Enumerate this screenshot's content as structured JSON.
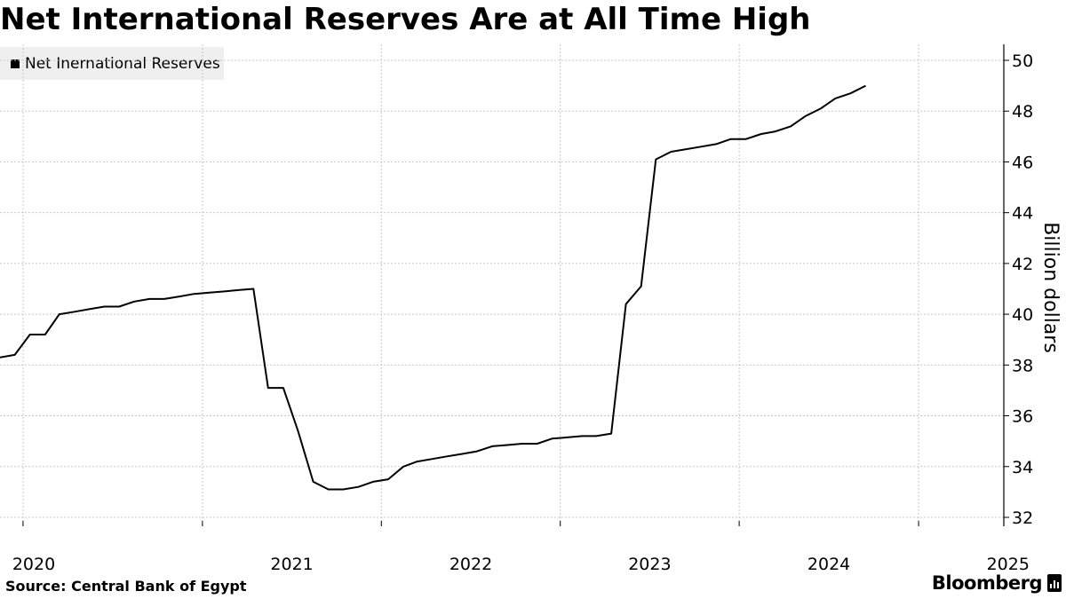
{
  "title": "Net International Reserves Are at All Time High",
  "source": "Source: Central Bank of Egypt",
  "brand": "Bloomberg",
  "brand_icon": "bloomberg-terminal-icon",
  "colors": {
    "line": "#000000",
    "grid": "#c8c8c8",
    "legend_bg": "#efefef",
    "axis": "#000000"
  },
  "chart_data": {
    "type": "line",
    "title": "Net International Reserves Are at All Time High",
    "ylabel": "Billion dollars",
    "xlabel": "",
    "ylim": [
      32,
      50
    ],
    "yticks": [
      32,
      34,
      36,
      38,
      40,
      42,
      44,
      46,
      48,
      50
    ],
    "xlim": [
      "2019-11-15",
      "2025-05-15"
    ],
    "xticks": [
      "2020",
      "2021",
      "2022",
      "2023",
      "2024",
      "2025"
    ],
    "xtick_dates": [
      "2020-01-01",
      "2021-01-01",
      "2022-01-01",
      "2023-01-01",
      "2024-01-01",
      "2025-01-01"
    ],
    "y_axis_position": "right",
    "grid": true,
    "legend": "top-left",
    "series": [
      {
        "name": "Net Inernational Reserves",
        "x": [
          "2019-11-15",
          "2019-12-15",
          "2020-01-15",
          "2020-02-15",
          "2020-03-15",
          "2020-04-15",
          "2020-05-15",
          "2020-06-15",
          "2020-07-15",
          "2020-08-15",
          "2020-09-15",
          "2020-10-15",
          "2020-11-15",
          "2020-12-15",
          "2021-01-15",
          "2021-02-15",
          "2021-03-15",
          "2021-04-15",
          "2021-05-15",
          "2021-06-15",
          "2021-07-15",
          "2021-08-15",
          "2021-09-15",
          "2021-10-15",
          "2021-11-15",
          "2021-12-15",
          "2022-01-15",
          "2022-02-15",
          "2022-03-15",
          "2022-04-15",
          "2022-05-15",
          "2022-06-15",
          "2022-07-15",
          "2022-08-15",
          "2022-09-15",
          "2022-10-15",
          "2022-11-15",
          "2022-12-15",
          "2023-01-15",
          "2023-02-15",
          "2023-03-15",
          "2023-04-15",
          "2023-05-15",
          "2023-06-15",
          "2023-07-15",
          "2023-08-15",
          "2023-09-15",
          "2023-10-15",
          "2023-11-15",
          "2023-12-15",
          "2024-01-15",
          "2024-02-15",
          "2024-03-15",
          "2024-04-15",
          "2024-05-15",
          "2024-06-15",
          "2024-07-15",
          "2024-08-15",
          "2024-09-15",
          "2024-10-15",
          "2024-11-15",
          "2024-12-15",
          "2025-01-15",
          "2025-02-15",
          "2025-03-15",
          "2025-04-15"
        ],
        "values": [
          38.3,
          38.4,
          39.2,
          39.2,
          40.0,
          40.1,
          40.2,
          40.3,
          40.3,
          40.5,
          40.6,
          40.6,
          40.7,
          40.8,
          40.85,
          40.9,
          40.95,
          41.0,
          37.1,
          37.1,
          35.4,
          33.4,
          33.1,
          33.1,
          33.2,
          33.4,
          33.5,
          34.0,
          34.2,
          34.3,
          34.4,
          34.5,
          34.6,
          34.8,
          34.85,
          34.9,
          34.9,
          35.1,
          35.15,
          35.2,
          35.2,
          35.3,
          40.4,
          41.1,
          46.1,
          46.4,
          46.5,
          46.6,
          46.7,
          46.9,
          46.9,
          47.1,
          47.2,
          47.4,
          47.8,
          48.1,
          48.5,
          48.7,
          49.0,
          null,
          null,
          null,
          null,
          null,
          null,
          null
        ]
      }
    ]
  }
}
